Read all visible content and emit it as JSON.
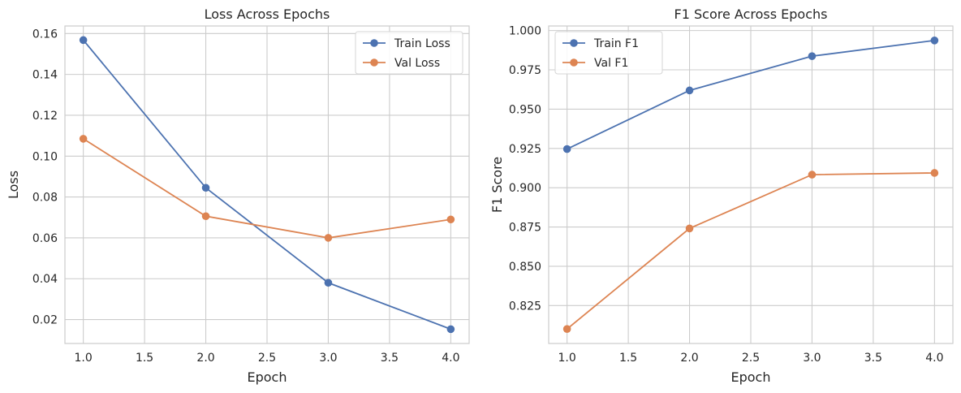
{
  "chart_data": [
    {
      "type": "line",
      "title": "Loss Across Epochs",
      "xlabel": "Epoch",
      "ylabel": "Loss",
      "xlim": [
        0.85,
        4.15
      ],
      "ylim": [
        0.0083,
        0.1637
      ],
      "xticks": [
        1.0,
        1.5,
        2.0,
        2.5,
        3.0,
        3.5,
        4.0
      ],
      "xtick_labels": [
        "1.0",
        "1.5",
        "2.0",
        "2.5",
        "3.0",
        "3.5",
        "4.0"
      ],
      "yticks": [
        0.02,
        0.04,
        0.06,
        0.08,
        0.1,
        0.12,
        0.14,
        0.16
      ],
      "ytick_labels": [
        "0.02",
        "0.04",
        "0.06",
        "0.08",
        "0.10",
        "0.12",
        "0.14",
        "0.16"
      ],
      "grid": true,
      "legend_position": "top-right",
      "x": [
        1,
        2,
        3,
        4
      ],
      "series": [
        {
          "name": "Train Loss",
          "color": "#4c72b0",
          "values": [
            0.1568,
            0.0845,
            0.038,
            0.0153
          ]
        },
        {
          "name": "Val Loss",
          "color": "#dd8452",
          "values": [
            0.1085,
            0.0706,
            0.06,
            0.069
          ]
        }
      ]
    },
    {
      "type": "line",
      "title": "F1 Score Across Epochs",
      "xlabel": "Epoch",
      "ylabel": "F1 Score",
      "xlim": [
        0.85,
        4.15
      ],
      "ylim": [
        0.8009,
        1.0029
      ],
      "xticks": [
        1.0,
        1.5,
        2.0,
        2.5,
        3.0,
        3.5,
        4.0
      ],
      "xtick_labels": [
        "1.0",
        "1.5",
        "2.0",
        "2.5",
        "3.0",
        "3.5",
        "4.0"
      ],
      "yticks": [
        0.825,
        0.85,
        0.875,
        0.9,
        0.925,
        0.95,
        0.975,
        1.0
      ],
      "ytick_labels": [
        "0.825",
        "0.850",
        "0.875",
        "0.900",
        "0.925",
        "0.950",
        "0.975",
        "1.000"
      ],
      "grid": true,
      "legend_position": "top-left",
      "x": [
        1,
        2,
        3,
        4
      ],
      "series": [
        {
          "name": "Train F1",
          "color": "#4c72b0",
          "values": [
            0.9246,
            0.9619,
            0.9837,
            0.9937
          ]
        },
        {
          "name": "Val F1",
          "color": "#dd8452",
          "values": [
            0.8101,
            0.8741,
            0.9083,
            0.9094
          ]
        }
      ]
    }
  ]
}
